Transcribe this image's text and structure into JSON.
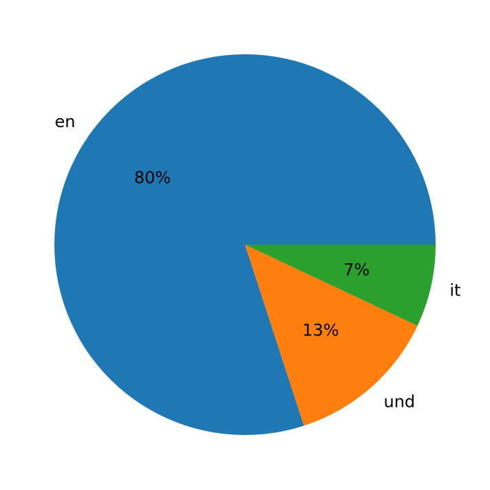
{
  "chart_data": {
    "type": "pie",
    "categories": [
      "en",
      "und",
      "it"
    ],
    "values": [
      80,
      13,
      7
    ],
    "pct_labels": [
      "80%",
      "13%",
      "7%"
    ],
    "colors": [
      "#1f77b4",
      "#ff7f0e",
      "#2ca02c"
    ],
    "start_angle_deg": 0,
    "direction": "counterclockwise",
    "title": "",
    "legend": "none"
  }
}
